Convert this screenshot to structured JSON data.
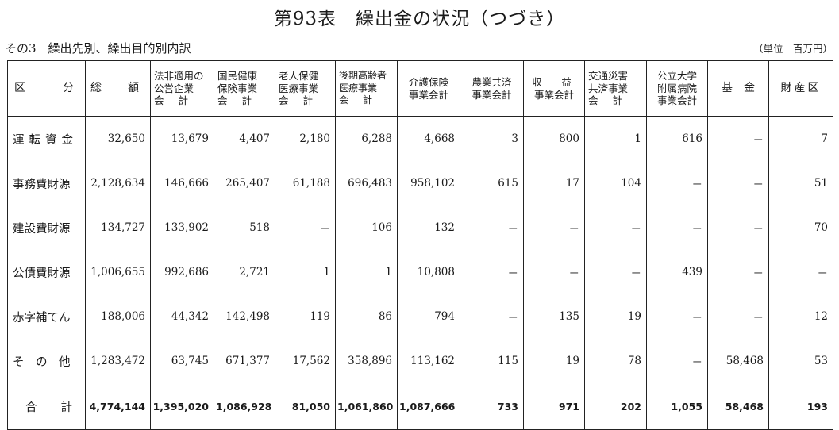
{
  "title": "第93表　繰出金の状況（つづき）",
  "subtitle": "その3　繰出先別、繰出目的別内訳",
  "unit": "（単位　百万円）",
  "header": {
    "kubun": [
      "区",
      "分"
    ],
    "sogaku": [
      "総",
      "額"
    ],
    "columns": [
      {
        "l1": "法非適用の",
        "l2": "公営企業",
        "l3": "会計"
      },
      {
        "l1": "国民健康",
        "l2": "保険事業",
        "l3": "会計"
      },
      {
        "l1": "老人保健",
        "l2": "医療事業",
        "l3": "会計"
      },
      {
        "l1": "後期高齢者",
        "l2": "医療事業",
        "l3": "会計"
      },
      {
        "l1": "介護保険",
        "l2": "事業会計",
        "l3": ""
      },
      {
        "l1": "農業共済",
        "l2": "事業会計",
        "l3": ""
      },
      {
        "l1": "収　益",
        "l2": "事業会計",
        "l3": ""
      },
      {
        "l1": "交通災害",
        "l2": "共済事業",
        "l3": "会計"
      },
      {
        "l1": "公立大学",
        "l2": "附属病院",
        "l3": "事業会計"
      },
      {
        "l1": "基　金",
        "l2": "",
        "l3": ""
      },
      {
        "l1": "財産区",
        "l2": "",
        "l3": ""
      }
    ]
  },
  "rows": [
    {
      "label": "運転資金",
      "values": [
        "32,650",
        "13,679",
        "4,407",
        "2,180",
        "6,288",
        "4,668",
        "3",
        "800",
        "1",
        "616",
        "－",
        "7"
      ]
    },
    {
      "label": "事務費財源",
      "values": [
        "2,128,634",
        "146,666",
        "265,407",
        "61,188",
        "696,483",
        "958,102",
        "615",
        "17",
        "104",
        "－",
        "－",
        "51"
      ]
    },
    {
      "label": "建設費財源",
      "values": [
        "134,727",
        "133,902",
        "518",
        "－",
        "106",
        "132",
        "－",
        "－",
        "－",
        "－",
        "－",
        "70"
      ]
    },
    {
      "label": "公債費財源",
      "values": [
        "1,006,655",
        "992,686",
        "2,721",
        "1",
        "1",
        "10,808",
        "－",
        "－",
        "－",
        "439",
        "－",
        "－"
      ]
    },
    {
      "label": "赤字補てん",
      "values": [
        "188,006",
        "44,342",
        "142,498",
        "119",
        "86",
        "794",
        "－",
        "135",
        "19",
        "－",
        "－",
        "12"
      ]
    },
    {
      "label": "そ　の　他",
      "values": [
        "1,283,472",
        "63,745",
        "671,377",
        "17,562",
        "358,896",
        "113,162",
        "115",
        "19",
        "78",
        "－",
        "58,468",
        "53"
      ]
    }
  ],
  "total": {
    "label": [
      "合",
      "計"
    ],
    "values": [
      "4,774,144",
      "1,395,020",
      "1,086,928",
      "81,050",
      "1,061,860",
      "1,087,666",
      "733",
      "971",
      "202",
      "1,055",
      "58,468",
      "193"
    ]
  }
}
